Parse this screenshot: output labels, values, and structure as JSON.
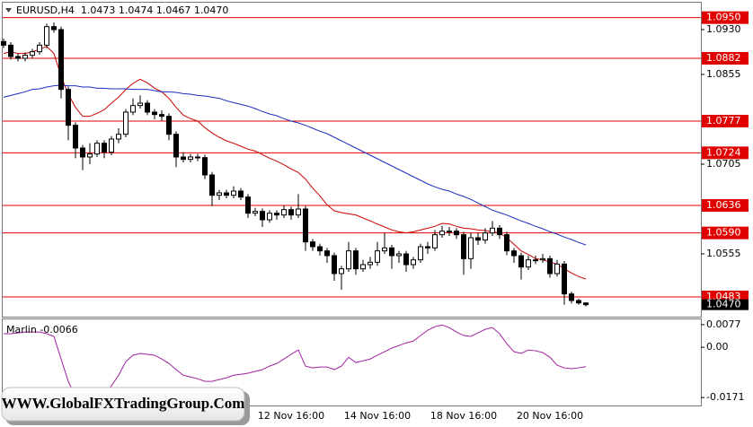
{
  "chart_data": [
    {
      "type": "candlestick",
      "title": "EURUSD,H4  1.0473 1.0474 1.0467 1.0470",
      "categories": [
        null,
        null,
        null,
        null,
        null,
        null,
        null,
        null,
        null,
        null,
        null,
        null,
        null,
        null,
        null,
        null,
        null,
        null,
        null,
        null,
        null,
        null,
        null,
        null,
        null,
        null,
        null,
        null,
        null,
        null,
        null,
        null,
        null,
        null,
        null,
        null,
        null,
        null,
        null,
        null,
        "12 Nov 16:00",
        null,
        null,
        null,
        null,
        null,
        null,
        null,
        null,
        null,
        null,
        null,
        "14 Nov 16:00",
        null,
        null,
        null,
        null,
        null,
        null,
        null,
        null,
        null,
        null,
        null,
        "18 Nov 16:00",
        null,
        null,
        null,
        null,
        null,
        null,
        null,
        null,
        null,
        null,
        null,
        "20 Nov 16:00",
        null,
        null,
        null,
        null,
        null
      ],
      "open": [
        1.091,
        1.0904,
        1.0885,
        1.0882,
        1.0887,
        1.0893,
        1.0904,
        1.0935,
        1.093,
        1.083,
        1.077,
        1.0732,
        1.0717,
        1.0722,
        1.074,
        1.0725,
        1.0747,
        1.0755,
        1.0792,
        1.0803,
        1.0807,
        1.0792,
        1.0788,
        1.0785,
        1.0755,
        1.0717,
        1.0713,
        1.0717,
        1.0716,
        1.0687,
        1.0653,
        1.0657,
        1.0653,
        1.066,
        1.065,
        1.0623,
        1.0626,
        1.0612,
        1.0623,
        1.062,
        1.0629,
        1.062,
        1.063,
        1.0575,
        1.0567,
        1.056,
        1.0552,
        1.0522,
        1.053,
        1.056,
        1.053,
        1.0537,
        1.0541,
        1.056,
        1.0565,
        1.0552,
        1.0555,
        1.0537,
        1.0545,
        1.0567,
        1.0565,
        1.0587,
        1.0593,
        1.0593,
        1.0587,
        1.0547,
        1.0582,
        1.0578,
        1.059,
        1.0598,
        1.0587,
        1.056,
        1.0552,
        1.0533,
        1.0545,
        1.0545,
        1.0547,
        1.0522,
        1.0538,
        1.0488,
        1.0477,
        1.0473
      ],
      "high": [
        1.0915,
        1.0909,
        1.089,
        1.0892,
        1.0898,
        1.0909,
        1.094,
        1.0942,
        1.0935,
        1.0835,
        1.0775,
        1.0737,
        1.074,
        1.0745,
        1.0745,
        1.0752,
        1.0765,
        1.0797,
        1.0815,
        1.082,
        1.0812,
        1.0797,
        1.0795,
        1.079,
        1.076,
        1.0725,
        1.0722,
        1.0722,
        1.0721,
        1.0692,
        1.0662,
        1.0662,
        1.0668,
        1.0665,
        1.0655,
        1.0632,
        1.0631,
        1.0628,
        1.0628,
        1.0636,
        1.0634,
        1.0655,
        1.0635,
        1.058,
        1.0572,
        1.0565,
        1.0557,
        1.0535,
        1.0575,
        1.0565,
        1.0545,
        1.055,
        1.0575,
        1.059,
        1.057,
        1.056,
        1.056,
        1.055,
        1.0572,
        1.0575,
        1.0595,
        1.0602,
        1.06,
        1.0598,
        1.0592,
        1.059,
        1.059,
        1.0598,
        1.061,
        1.0603,
        1.0592,
        1.0565,
        1.0557,
        1.0552,
        1.0552,
        1.0555,
        1.0552,
        1.0545,
        1.0543,
        1.0492,
        1.048,
        1.0474
      ],
      "low": [
        1.0899,
        1.088,
        1.0877,
        1.0877,
        1.0882,
        1.0888,
        1.0899,
        1.0925,
        1.0815,
        1.0745,
        1.0715,
        1.0695,
        1.0705,
        1.0717,
        1.0715,
        1.072,
        1.074,
        1.075,
        1.0787,
        1.0798,
        1.0787,
        1.078,
        1.0778,
        1.0745,
        1.07,
        1.0708,
        1.0708,
        1.071,
        1.068,
        1.0635,
        1.0645,
        1.0648,
        1.0648,
        1.0645,
        1.0615,
        1.0618,
        1.06,
        1.0607,
        1.0612,
        1.0615,
        1.0612,
        1.0615,
        1.056,
        1.056,
        1.0552,
        1.054,
        1.051,
        1.0495,
        1.0525,
        1.052,
        1.0525,
        1.053,
        1.0535,
        1.0555,
        1.053,
        1.054,
        1.0525,
        1.053,
        1.054,
        1.0555,
        1.056,
        1.0582,
        1.0585,
        1.058,
        1.052,
        1.053,
        1.057,
        1.0572,
        1.0585,
        1.058,
        1.0553,
        1.054,
        1.0512,
        1.0528,
        1.0538,
        1.054,
        1.0515,
        1.0517,
        1.047,
        1.0472,
        1.047,
        1.0467
      ],
      "close": [
        1.0904,
        1.0885,
        1.0882,
        1.0887,
        1.0893,
        1.0904,
        1.0935,
        1.093,
        1.083,
        1.077,
        1.0732,
        1.0717,
        1.0722,
        1.074,
        1.0725,
        1.0747,
        1.0755,
        1.0792,
        1.0803,
        1.0807,
        1.0792,
        1.0788,
        1.0785,
        1.0755,
        1.0717,
        1.0713,
        1.0717,
        1.0716,
        1.0687,
        1.0653,
        1.0657,
        1.0653,
        1.066,
        1.065,
        1.0623,
        1.0626,
        1.0612,
        1.0623,
        1.062,
        1.0629,
        1.062,
        1.063,
        1.0575,
        1.0567,
        1.056,
        1.0552,
        1.0522,
        1.053,
        1.056,
        1.053,
        1.0537,
        1.0541,
        1.056,
        1.0565,
        1.0552,
        1.0555,
        1.0537,
        1.0545,
        1.0567,
        1.0565,
        1.0587,
        1.0593,
        1.0593,
        1.0587,
        1.0547,
        1.0582,
        1.0578,
        1.059,
        1.0598,
        1.0587,
        1.056,
        1.0552,
        1.0533,
        1.0545,
        1.0545,
        1.0547,
        1.0522,
        1.0538,
        1.0488,
        1.0477,
        1.0473,
        1.047
      ],
      "up_color": "#ffffff",
      "down_color": "#000000",
      "lines": [
        {
          "color": "#cc0000",
          "values": [
            1.089,
            1.0893,
            1.089,
            1.089,
            1.0893,
            1.0897,
            1.0902,
            1.089,
            1.0852,
            1.0822,
            1.08,
            1.0785,
            1.0785,
            1.079,
            1.0796,
            1.0807,
            1.0817,
            1.083,
            1.084,
            1.0847,
            1.0841,
            1.0832,
            1.0826,
            1.0815,
            1.08,
            1.0787,
            1.0781,
            1.0777,
            1.0766,
            1.0757,
            1.075,
            1.0744,
            1.074,
            1.0735,
            1.073,
            1.0727,
            1.0721,
            1.0715,
            1.071,
            1.0704,
            1.0697,
            1.0691,
            1.068,
            1.0665,
            1.0652,
            1.0637,
            1.0627,
            1.0624,
            1.0622,
            1.062,
            1.0615,
            1.061,
            1.0605,
            1.06,
            1.0595,
            1.0592,
            1.059,
            1.0592,
            1.0595,
            1.0598,
            1.0601,
            1.0606,
            1.0605,
            1.0601,
            1.0598,
            1.0597,
            1.0595,
            1.0594,
            1.0592,
            1.059,
            1.0582,
            1.0571,
            1.056,
            1.0554,
            1.0547,
            1.0545,
            1.0541,
            1.0538,
            1.053,
            1.0523,
            1.0517,
            1.0513
          ]
        },
        {
          "color": "#1a2ebf",
          "values": [
            1.0817,
            1.082,
            1.0823,
            1.0826,
            1.083,
            1.0831,
            1.0834,
            1.0836,
            1.0837,
            1.0836,
            1.0836,
            1.0834,
            1.0834,
            1.0832,
            1.0832,
            1.0831,
            1.0831,
            1.0831,
            1.083,
            1.083,
            1.083,
            1.0828,
            1.0826,
            1.0826,
            1.0825,
            1.0823,
            1.0822,
            1.082,
            1.0819,
            1.0817,
            1.0815,
            1.0811,
            1.0808,
            1.0805,
            1.0802,
            1.0798,
            1.0793,
            1.0789,
            1.0786,
            1.0781,
            1.0777,
            1.0774,
            1.077,
            1.0765,
            1.076,
            1.0756,
            1.075,
            1.0744,
            1.0738,
            1.0732,
            1.0726,
            1.072,
            1.0714,
            1.0708,
            1.0702,
            1.0696,
            1.069,
            1.0684,
            1.0678,
            1.0672,
            1.0667,
            1.0663,
            1.066,
            1.0655,
            1.0651,
            1.0646,
            1.064,
            1.0634,
            1.0628,
            1.0624,
            1.062,
            1.0615,
            1.061,
            1.0606,
            1.0601,
            1.0597,
            1.0592,
            1.0588,
            1.0583,
            1.0579,
            1.0574,
            1.057
          ]
        }
      ],
      "levels": [
        {
          "value": 1.095,
          "label": "1.0950"
        },
        {
          "value": 1.0882,
          "label": "1.0882"
        },
        {
          "value": 1.0777,
          "label": "1.0777"
        },
        {
          "value": 1.0724,
          "label": "1.0724"
        },
        {
          "value": 1.0636,
          "label": "1.0636"
        },
        {
          "value": 1.059,
          "label": "1.0590"
        },
        {
          "value": 1.0483,
          "label": "1.0483"
        }
      ],
      "level_color": "#e00000",
      "last_price": {
        "value": 1.047,
        "label": "1.0470"
      },
      "ylim": [
        1.04515,
        1.0972
      ],
      "yticks": [
        {
          "value": 1.093,
          "label": "1.0930"
        },
        {
          "value": 1.0855,
          "label": "1.0855"
        },
        {
          "value": 1.0705,
          "label": "1.0705"
        },
        {
          "value": 1.0555,
          "label": "1.0555"
        }
      ]
    },
    {
      "type": "line",
      "title": "Marlin -0.0066",
      "color": "#a020a0",
      "values": [
        0.0046,
        0.0046,
        0.0049,
        0.0052,
        0.0052,
        0.0052,
        0.0046,
        0.0037,
        -0.004,
        -0.0116,
        -0.0168,
        -0.0192,
        -0.0192,
        -0.0186,
        -0.0162,
        -0.0131,
        -0.0095,
        -0.0049,
        -0.0027,
        -0.0021,
        -0.0024,
        -0.0027,
        -0.004,
        -0.0055,
        -0.0076,
        -0.0095,
        -0.0101,
        -0.0107,
        -0.0116,
        -0.0116,
        -0.011,
        -0.0104,
        -0.0095,
        -0.0092,
        -0.0088,
        -0.0082,
        -0.0076,
        -0.0064,
        -0.0055,
        -0.004,
        -0.0024,
        -0.0009,
        -0.0064,
        -0.007,
        -0.0067,
        -0.0067,
        -0.0076,
        -0.0064,
        -0.0034,
        -0.0052,
        -0.0046,
        -0.004,
        -0.0027,
        -0.0015,
        -0.0003,
        0.0006,
        0.0015,
        0.0021,
        0.004,
        0.0058,
        0.007,
        0.0076,
        0.0067,
        0.0052,
        0.004,
        0.0037,
        0.0049,
        0.0061,
        0.0067,
        0.0046,
        0.0012,
        -0.0015,
        -0.0021,
        -0.0009,
        -0.0012,
        -0.0018,
        -0.0034,
        -0.0061,
        -0.007,
        -0.0073,
        -0.007,
        -0.0066
      ],
      "ylim": [
        -0.0198,
        0.0095
      ],
      "yticks": [
        {
          "value": 0.0077,
          "label": "0.0077"
        },
        {
          "value": 0,
          "label": "0.00"
        },
        {
          "value": -0.0171,
          "label": "-0.0171"
        }
      ]
    }
  ],
  "watermark": "WWW.GlobalFXTradingGroup.Com"
}
